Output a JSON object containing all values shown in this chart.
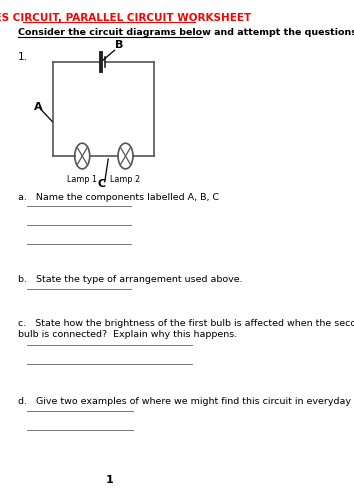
{
  "title": "SERIES CIRCUIT, PARALLEL CIRCUIT WORKSHEET",
  "title_color": "#FF0000",
  "subtitle": "Consider the circuit diagrams below and attempt the questions that follow",
  "question_number": "1.",
  "label_A": "A",
  "label_B": "B",
  "label_C": "C",
  "lamp1_label": "Lamp 1",
  "lamp2_label": "Lamp 2",
  "questions": [
    "a.   Name the components labelled A, B, C",
    "b.   State the type of arrangement used above.",
    "c.   State how the brightness of the first bulb is affected when the second\n      bulb is connected?  Explain why this happens.",
    "d.   Give two examples of where we might find this circuit in everyday life."
  ],
  "page_number": "1",
  "bg_color": "#FFFFFF",
  "text_color": "#000000",
  "circuit_color": "#555555",
  "battery_color": "#222222"
}
